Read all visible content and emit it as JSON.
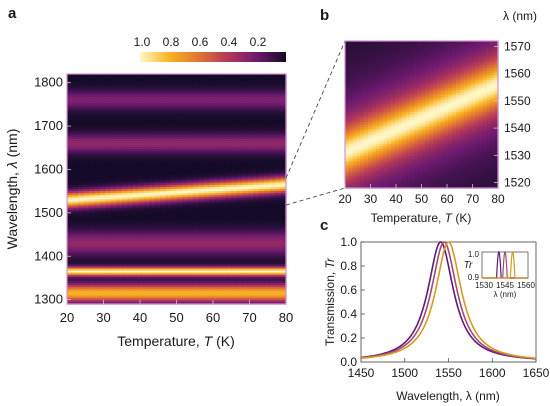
{
  "figure": {
    "panel_labels": {
      "a": "a",
      "b": "b",
      "c": "c"
    }
  },
  "colorbar": {
    "ticks": [
      "1.0",
      "0.8",
      "0.6",
      "0.4",
      "0.2"
    ],
    "colors": [
      "#fff7c6",
      "#f8b322",
      "#e27432",
      "#b4385a",
      "#6d1a70",
      "#140b28"
    ]
  },
  "chart_data": [
    {
      "panel": "a",
      "type": "heatmap",
      "xlabel": "Temperature, T (K)",
      "ylabel": "Wavelength, λ (nm)",
      "xlabel_parts": [
        "Temperature, ",
        "T",
        " (K)"
      ],
      "ylabel_parts": [
        "Wavelength, ",
        "λ",
        " (nm)"
      ],
      "xlim": [
        20,
        80
      ],
      "ylim": [
        1290,
        1820
      ],
      "xticks": [
        20,
        30,
        40,
        50,
        60,
        70,
        80
      ],
      "yticks": [
        1300,
        1400,
        1500,
        1600,
        1700,
        1800
      ],
      "bands": [
        {
          "center": 1547,
          "width": 18,
          "amplitude": 1.0,
          "shift_per_K": 0.6
        },
        {
          "center": 1365,
          "width": 10,
          "amplitude": 1.0,
          "shift_per_K": 0.0
        },
        {
          "center": 1315,
          "width": 20,
          "amplitude": 0.8,
          "shift_per_K": 0.0
        },
        {
          "center": 1430,
          "width": 28,
          "amplitude": 0.3,
          "shift_per_K": 0.0
        },
        {
          "center": 1660,
          "width": 22,
          "amplitude": 0.3,
          "shift_per_K": 0.0
        },
        {
          "center": 1760,
          "width": 22,
          "amplitude": 0.25,
          "shift_per_K": 0.0
        }
      ]
    },
    {
      "panel": "b",
      "type": "heatmap",
      "xlabel": "Temperature, T (K)",
      "ylabel": "λ (nm)",
      "xlabel_parts": [
        "Temperature, ",
        "T",
        " (K)"
      ],
      "xlim": [
        20,
        80
      ],
      "ylim": [
        1518,
        1572
      ],
      "xticks": [
        20,
        30,
        40,
        50,
        60,
        70,
        80
      ],
      "yticks": [
        1520,
        1530,
        1540,
        1550,
        1560,
        1570
      ],
      "resonance": {
        "center_at_20K": 1531,
        "center_at_80K": 1556,
        "width": 9
      }
    },
    {
      "panel": "c",
      "type": "line",
      "xlabel": "Wavelength, λ (nm)",
      "ylabel": "Transmission, Tr",
      "ylabel_parts": [
        "Transmission, ",
        "Tr"
      ],
      "xlim": [
        1450,
        1650
      ],
      "ylim": [
        0,
        1.0
      ],
      "xticks": [
        1450,
        1500,
        1550,
        1600,
        1650
      ],
      "yticks": [
        0.0,
        0.2,
        0.4,
        0.6,
        0.8,
        1.0
      ],
      "series": [
        {
          "center": 1541,
          "hwhm": 18,
          "color": "#5e1c78"
        },
        {
          "center": 1545,
          "hwhm": 18,
          "color": "#a24a7a"
        },
        {
          "center": 1550,
          "hwhm": 18,
          "color": "#d69a1e"
        }
      ],
      "inset": {
        "ylabel": "Tr",
        "xlabel": "λ (nm)",
        "xlim": [
          1530,
          1560
        ],
        "ylim": [
          0.9,
          1.0
        ],
        "xticks": [
          1530,
          1545,
          1560
        ],
        "yticks": [
          0.9,
          1.0
        ],
        "ytick_labels": [
          "0.9",
          "1.0"
        ]
      }
    }
  ]
}
